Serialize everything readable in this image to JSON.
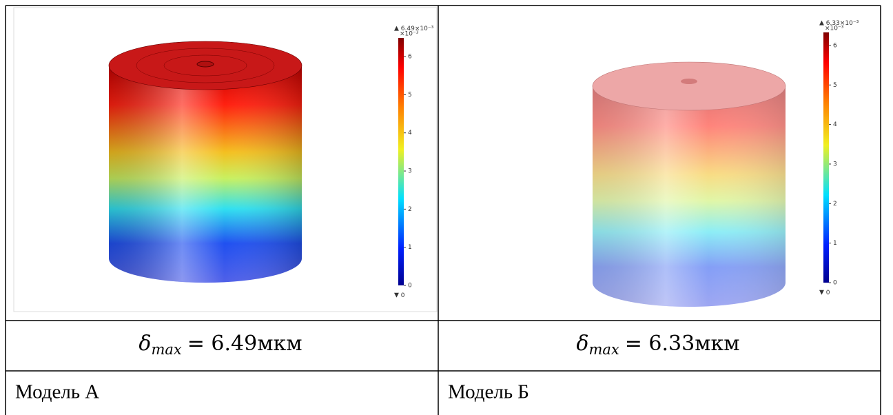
{
  "panels": [
    {
      "colorbar": {
        "max": {
          "value": 6.49,
          "label": "6.49×10⁻³"
        },
        "unit": "×10⁻³",
        "ticks": [
          0,
          1,
          2,
          3,
          4,
          5,
          6
        ],
        "min": 0
      },
      "formula": {
        "symbol": "δ",
        "subscript": "max",
        "rest": "= 6.49мкм"
      },
      "caption": "Модель А"
    },
    {
      "colorbar": {
        "max": {
          "value": 6.33,
          "label": "6.33×10⁻³"
        },
        "unit": "×10⁻³",
        "ticks": [
          0,
          1,
          2,
          3,
          4,
          5,
          6
        ],
        "min": 0
      },
      "formula": {
        "symbol": "δ",
        "subscript": "max",
        "rest": "= 6.33мкм"
      },
      "caption": "Модель Б"
    }
  ]
}
